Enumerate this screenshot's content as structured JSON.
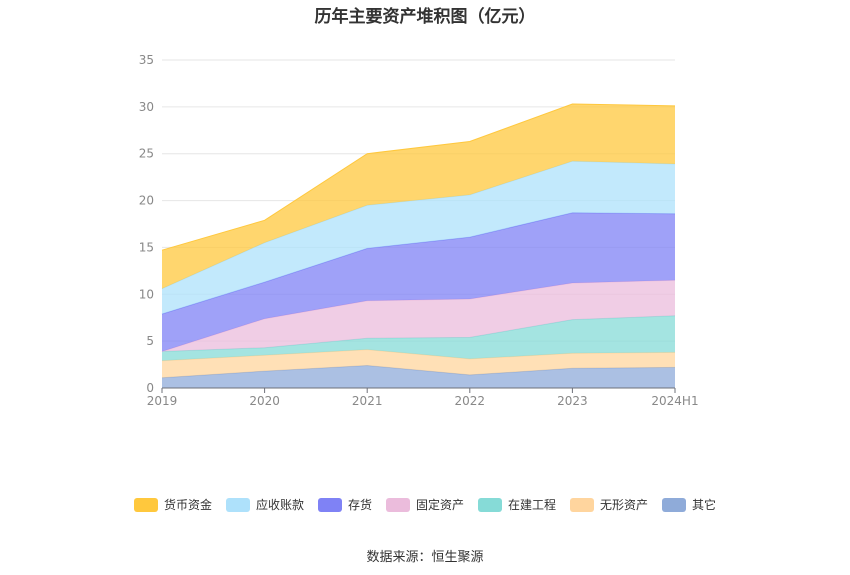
{
  "chart_data": {
    "type": "area",
    "stacked": true,
    "title": "历年主要资产堆积图（亿元）",
    "categories": [
      "2019",
      "2020",
      "2021",
      "2022",
      "2023",
      "2024H1"
    ],
    "ylim": [
      0,
      35
    ],
    "yticks": [
      0,
      5,
      10,
      15,
      20,
      25,
      30,
      35
    ],
    "grid": true,
    "legend_position": "bottom",
    "series": [
      {
        "name": "其它",
        "color": "#8fabd9",
        "values": [
          1.1,
          1.8,
          2.4,
          1.4,
          2.1,
          2.2
        ]
      },
      {
        "name": "无形资产",
        "color": "#ffd59e",
        "values": [
          1.8,
          1.7,
          1.7,
          1.7,
          1.6,
          1.6
        ]
      },
      {
        "name": "在建工程",
        "color": "#86dbd7",
        "values": [
          1.0,
          0.8,
          1.2,
          2.3,
          3.6,
          3.9
        ]
      },
      {
        "name": "固定资产",
        "color": "#ebbcdc",
        "values": [
          0.0,
          3.1,
          4.0,
          4.1,
          3.9,
          3.8
        ]
      },
      {
        "name": "存货",
        "color": "#7f82f5",
        "values": [
          4.0,
          3.9,
          5.6,
          6.6,
          7.5,
          7.1
        ]
      },
      {
        "name": "应收账款",
        "color": "#aee1fb",
        "values": [
          2.7,
          4.2,
          4.6,
          4.5,
          5.5,
          5.3
        ]
      },
      {
        "name": "货币资金",
        "color": "#ffc83d",
        "values": [
          4.1,
          2.4,
          5.5,
          5.7,
          6.1,
          6.2
        ]
      }
    ]
  },
  "legend_order": [
    "货币资金",
    "应收账款",
    "存货",
    "固定资产",
    "在建工程",
    "无形资产",
    "其它"
  ],
  "source": "数据来源：恒生聚源"
}
